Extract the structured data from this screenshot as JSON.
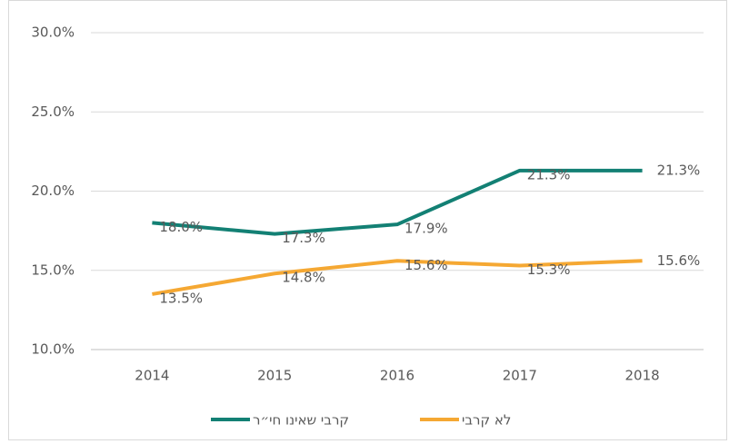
{
  "chart_data": {
    "type": "line",
    "categories": [
      "2014",
      "2015",
      "2016",
      "2017",
      "2018"
    ],
    "series": [
      {
        "name": "קרבי שאינו חי״ר",
        "color": "#138074",
        "values": [
          18.0,
          17.3,
          17.9,
          21.3,
          21.3
        ],
        "value_labels": [
          "18.0%",
          "17.3%",
          "17.9%",
          "21.3%",
          "21.3%"
        ]
      },
      {
        "name": "לא קרבי",
        "color": "#f5a833",
        "values": [
          13.5,
          14.8,
          15.6,
          15.3,
          15.6
        ],
        "value_labels": [
          "13.5%",
          "14.8%",
          "15.6%",
          "15.3%",
          "15.6%"
        ]
      }
    ],
    "ylim": [
      10,
      30
    ],
    "yticks": [
      {
        "value": 10,
        "label": "10.0%"
      },
      {
        "value": 15,
        "label": "15.0%"
      },
      {
        "value": 20,
        "label": "20.0%"
      },
      {
        "value": 25,
        "label": "25.0%"
      },
      {
        "value": 30,
        "label": "30.0%"
      }
    ],
    "grid": true,
    "legend": "bottom"
  }
}
